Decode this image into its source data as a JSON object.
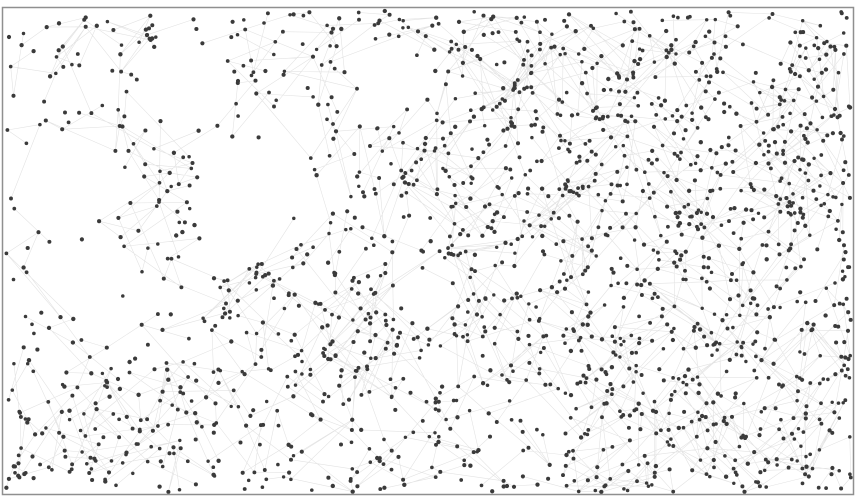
{
  "graph": {
    "node_color": "#3a3a3a",
    "edge_color": "#e3e3e3",
    "frame_color": "#8f8f8f",
    "background_color": "#ffffff",
    "node_count": 1800
  }
}
